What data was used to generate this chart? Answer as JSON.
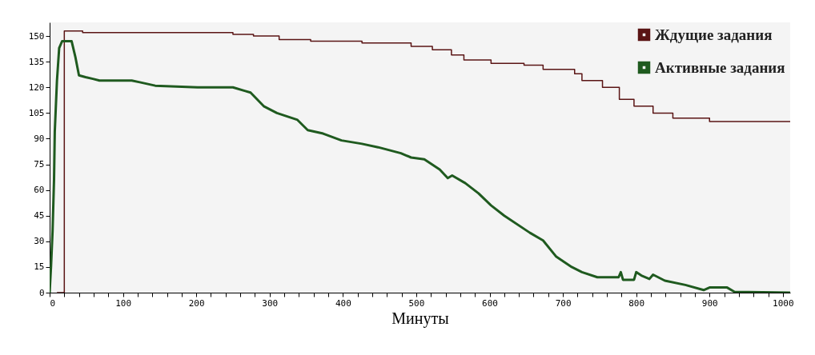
{
  "chart_data": {
    "type": "line",
    "xlabel": "Минуты",
    "legend": "top right",
    "grid": false,
    "xlim": [
      0,
      1010
    ],
    "ylim": [
      0,
      158
    ],
    "xticks": [
      0,
      {
        "value": 20,
        "label": null
      },
      {
        "value": 40,
        "label": null
      },
      {
        "value": 60,
        "label": null
      },
      {
        "value": 80,
        "label": null
      },
      100,
      {
        "value": 120,
        "label": null
      },
      {
        "value": 140,
        "label": null
      },
      {
        "value": 160,
        "label": null
      },
      {
        "value": 180,
        "label": null
      },
      200,
      {
        "value": 220,
        "label": null
      },
      {
        "value": 240,
        "label": null
      },
      {
        "value": 260,
        "label": null
      },
      {
        "value": 280,
        "label": null
      },
      300,
      {
        "value": 320,
        "label": null
      },
      {
        "value": 340,
        "label": null
      },
      {
        "value": 360,
        "label": null
      },
      {
        "value": 380,
        "label": null
      },
      400,
      {
        "value": 420,
        "label": null
      },
      {
        "value": 440,
        "label": null
      },
      {
        "value": 460,
        "label": null
      },
      {
        "value": 480,
        "label": null
      },
      500,
      {
        "value": 520,
        "label": null
      },
      {
        "value": 540,
        "label": null
      },
      {
        "value": 560,
        "label": null
      },
      {
        "value": 580,
        "label": null
      },
      600,
      {
        "value": 620,
        "label": null
      },
      {
        "value": 640,
        "label": null
      },
      {
        "value": 660,
        "label": null
      },
      {
        "value": 680,
        "label": null
      },
      700,
      {
        "value": 720,
        "label": null
      },
      {
        "value": 740,
        "label": null
      },
      {
        "value": 760,
        "label": null
      },
      {
        "value": 780,
        "label": null
      },
      800,
      {
        "value": 820,
        "label": null
      },
      {
        "value": 840,
        "label": null
      },
      {
        "value": 860,
        "label": null
      },
      {
        "value": 880,
        "label": null
      },
      900,
      {
        "value": 920,
        "label": null
      },
      {
        "value": 940,
        "label": null
      },
      {
        "value": 960,
        "label": null
      },
      {
        "value": 980,
        "label": null
      },
      1000
    ],
    "yticks": [
      0,
      15,
      30,
      45,
      60,
      75,
      90,
      105,
      120,
      135,
      150
    ],
    "series": [
      {
        "name": "Ждущие задания",
        "type": "step",
        "color": "#5a1414",
        "x": [
          10,
          20,
          45,
          250,
          278,
          313,
          356,
          426,
          493,
          522,
          548,
          565,
          602,
          647,
          673,
          716,
          726,
          754,
          777,
          797,
          823,
          850,
          900,
          1010
        ],
        "values": [
          0,
          153,
          152,
          151,
          150,
          148,
          147,
          146,
          144,
          142,
          139,
          136,
          134,
          133,
          130.5,
          128,
          124,
          120,
          113,
          109,
          105,
          102,
          100,
          100
        ]
      },
      {
        "name": "Активные задания",
        "type": "line",
        "color": "#1f5a1f",
        "x": [
          0,
          2,
          4,
          6,
          7,
          10,
          13,
          17,
          30,
          35,
          40,
          49,
          59,
          68,
          112,
          123,
          144,
          202,
          250,
          266,
          274,
          292,
          310,
          338,
          352,
          373,
          398,
          426,
          448,
          479,
          493,
          511,
          532,
          543,
          549,
          567,
          585,
          602,
          620,
          655,
          673,
          691,
          712,
          726,
          747,
          776,
          779,
          782,
          797,
          800,
          807,
          818,
          823,
          839,
          867,
          892,
          900,
          924,
          934,
          1010
        ],
        "values": [
          0,
          16,
          36,
          66,
          94,
          124,
          143,
          147,
          147,
          138,
          127,
          126,
          125,
          124,
          124,
          123,
          121,
          120,
          120,
          118,
          117,
          109,
          105,
          101,
          95,
          93,
          89,
          87,
          85,
          81.5,
          79,
          78,
          72,
          67,
          68.5,
          64,
          58,
          51,
          45,
          35,
          30.5,
          21,
          15,
          12,
          9,
          9,
          12,
          7.5,
          7.5,
          12,
          10,
          8,
          10.5,
          7,
          4.5,
          1.5,
          3,
          3,
          0.5,
          0
        ]
      }
    ]
  }
}
